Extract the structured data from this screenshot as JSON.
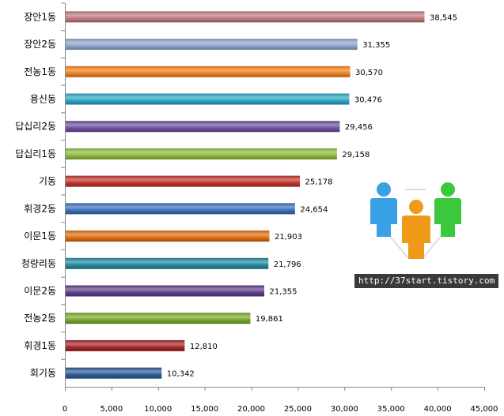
{
  "chart_data": {
    "type": "bar",
    "orientation": "horizontal",
    "title": "",
    "xlabel": "",
    "ylabel": "",
    "xlim": [
      0,
      45000
    ],
    "x_ticks": [
      0,
      5000,
      10000,
      15000,
      20000,
      25000,
      30000,
      35000,
      40000,
      45000
    ],
    "x_tick_labels": [
      "0",
      "5,000",
      "10,000",
      "15,000",
      "20,000",
      "25,000",
      "30,000",
      "35,000",
      "40,000",
      "45,000"
    ],
    "grid": false,
    "legend": "none",
    "categories": [
      "장안1동",
      "장안2동",
      "전농1동",
      "용신동",
      "답십리2동",
      "답십리1동",
      "기동",
      "휘경2동",
      "이문1동",
      "청량리동",
      "이문2동",
      "전농2동",
      "휘경1동",
      "회기동"
    ],
    "values": [
      38545,
      31355,
      30570,
      30476,
      29456,
      29158,
      25178,
      24654,
      21903,
      21796,
      21355,
      19861,
      12810,
      10342
    ],
    "value_labels": [
      "38,545",
      "31,355",
      "30,570",
      "30,476",
      "29,456",
      "29,158",
      "25,178",
      "24,654",
      "21,903",
      "21,796",
      "21,355",
      "19,861",
      "12,810",
      "10,342"
    ],
    "colors": [
      "#c0797f",
      "#8fa6cc",
      "#f0821e",
      "#2ba7c4",
      "#7050a0",
      "#8cbb3c",
      "#c0332c",
      "#3a6fba",
      "#e06d10",
      "#23889e",
      "#5e3e8c",
      "#78a82c",
      "#a4262a",
      "#2d5a9a"
    ]
  },
  "watermark": {
    "text": "http://37start.tistory.com",
    "icon": "people-group-icon",
    "colors": [
      "#3aa0e6",
      "#f09a1a",
      "#3cc83c"
    ]
  }
}
